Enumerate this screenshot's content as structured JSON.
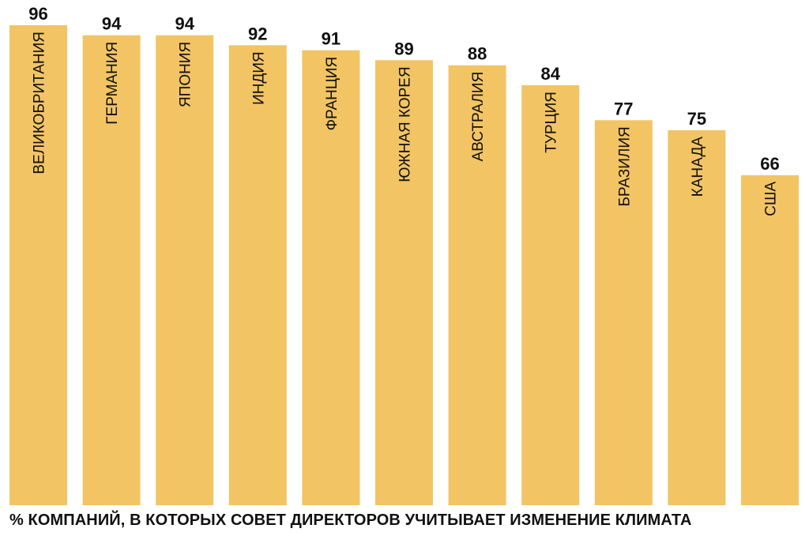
{
  "chart_data": {
    "type": "bar",
    "categories": [
      "ВЕЛИКОБРИТАНИЯ",
      "ГЕРМАНИЯ",
      "ЯПОНИЯ",
      "ИНДИЯ",
      "ФРАНЦИЯ",
      "ЮЖНАЯ КОРЕЯ",
      "АВСТРАЛИЯ",
      "ТУРЦИЯ",
      "БРАЗИЛИЯ",
      "КАНАДА",
      "США"
    ],
    "values": [
      96,
      94,
      94,
      92,
      91,
      89,
      88,
      84,
      77,
      75,
      66
    ],
    "data_labels": [
      "96",
      "94",
      "94",
      "92",
      "91",
      "89",
      "88",
      "84",
      "77",
      "75",
      "66"
    ],
    "xlabel": "% КОМПАНИЙ, В КОТОРЫХ СОВЕТ ДИРЕКТОРОВ УЧИТЫВАЕТ ИЗМЕНЕНИЕ КЛИМАТА",
    "ylabel": "",
    "ylim": [
      0,
      96
    ],
    "grid": false,
    "bar_color": "#f2c464"
  }
}
